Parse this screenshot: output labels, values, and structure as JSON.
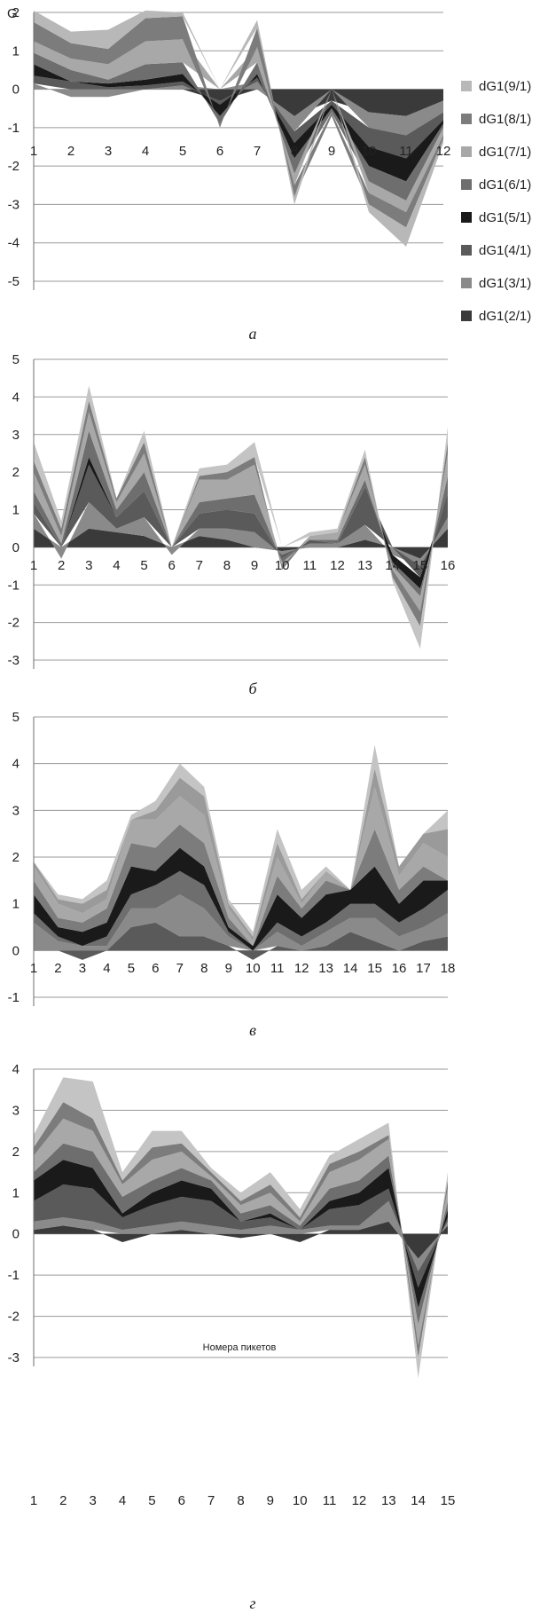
{
  "chart_data": [
    {
      "type": "area",
      "caption": "а",
      "y_axis_title": "G",
      "x_axis_title": "",
      "ylim": [
        -5,
        2
      ],
      "yticks": [
        2,
        1,
        0,
        -1,
        -2,
        -3,
        -4,
        -5
      ],
      "categories": [
        "1",
        "2",
        "3",
        "4",
        "5",
        "6",
        "7",
        "8",
        "9",
        "10",
        "11",
        "12"
      ],
      "legend_position": "right",
      "series_order_note": "",
      "series": [
        {
          "name": "dG1(2/1)",
          "color": "#3a3a3a",
          "values": [
            0.0,
            0.0,
            0.0,
            0.0,
            0.0,
            -0.3,
            0.0,
            -0.7,
            -0.3,
            -0.6,
            -0.7,
            -0.3
          ]
        },
        {
          "name": "dG1(3/1)",
          "color": "#8a8a8a",
          "values": [
            0.15,
            -0.2,
            -0.2,
            0.0,
            0.1,
            0.0,
            0.2,
            -0.4,
            0.0,
            -0.4,
            -0.5,
            -0.3
          ]
        },
        {
          "name": "dG1(4/1)",
          "color": "#5a5a5a",
          "values": [
            0.2,
            0.2,
            0.05,
            0.1,
            0.1,
            -0.1,
            0.1,
            -0.3,
            -0.1,
            -0.5,
            -0.6,
            -0.2
          ]
        },
        {
          "name": "dG1(5/1)",
          "color": "#1a1a1a",
          "values": [
            0.3,
            0.0,
            0.1,
            0.15,
            0.2,
            -0.3,
            0.1,
            -0.4,
            -0.1,
            -0.5,
            -0.6,
            -0.1
          ]
        },
        {
          "name": "dG1(6/1)",
          "color": "#6e6e6e",
          "values": [
            0.3,
            0.3,
            0.1,
            0.4,
            0.3,
            -0.2,
            0.3,
            -0.4,
            -0.1,
            -0.4,
            -0.5,
            -0.1
          ]
        },
        {
          "name": "dG1(7/1)",
          "color": "#a8a8a8",
          "values": [
            0.3,
            0.3,
            0.4,
            0.6,
            0.6,
            0.0,
            0.4,
            -0.3,
            0.0,
            -0.3,
            -0.3,
            -0.2
          ]
        },
        {
          "name": "dG1(8/1)",
          "color": "#7c7c7c",
          "values": [
            0.5,
            0.4,
            0.4,
            0.6,
            0.6,
            -0.1,
            0.5,
            -0.3,
            -0.1,
            -0.3,
            -0.4,
            -0.1
          ]
        },
        {
          "name": "dG1(9/1)",
          "color": "#b8b8b8",
          "values": [
            0.3,
            0.3,
            0.5,
            0.2,
            0.1,
            0.0,
            0.2,
            -0.2,
            0.0,
            -0.2,
            -0.5,
            -0.1
          ]
        }
      ]
    },
    {
      "type": "area",
      "caption": "б",
      "y_axis_title": "",
      "x_axis_title": "",
      "ylim": [
        -3,
        5
      ],
      "yticks": [
        5,
        4,
        3,
        2,
        1,
        0,
        -1,
        -2,
        -3
      ],
      "categories": [
        "1",
        "2",
        "3",
        "4",
        "5",
        "6",
        "7",
        "8",
        "9",
        "10",
        "11",
        "12",
        "13",
        "14",
        "15",
        "16"
      ],
      "legend_position": "none",
      "series": [
        {
          "name": "",
          "color": "#3a3a3a",
          "values": [
            0.5,
            0.0,
            0.5,
            0.4,
            0.3,
            0.0,
            0.3,
            0.2,
            0.0,
            -0.1,
            0.0,
            0.0,
            0.2,
            0.0,
            -0.3,
            0.5
          ]
        },
        {
          "name": "",
          "color": "#8a8a8a",
          "values": [
            0.4,
            -0.3,
            0.7,
            0.1,
            0.5,
            -0.2,
            0.2,
            0.3,
            0.4,
            -0.1,
            0.1,
            0.1,
            0.4,
            -0.2,
            -0.2,
            0.3
          ]
        },
        {
          "name": "",
          "color": "#5a5a5a",
          "values": [
            0.3,
            0.0,
            1.0,
            0.3,
            0.7,
            0.0,
            0.4,
            0.5,
            0.5,
            -0.1,
            0.1,
            0.0,
            1.0,
            0.0,
            -0.3,
            0.6
          ]
        },
        {
          "name": "",
          "color": "#1a1a1a",
          "values": [
            0.0,
            0.0,
            0.2,
            0.0,
            0.0,
            0.0,
            0.0,
            0.0,
            0.0,
            0.0,
            0.0,
            0.0,
            0.0,
            -0.2,
            -0.3,
            0.0
          ]
        },
        {
          "name": "",
          "color": "#6e6e6e",
          "values": [
            0.3,
            0.1,
            0.7,
            0.2,
            0.5,
            0.0,
            0.3,
            0.3,
            0.5,
            -0.1,
            0.0,
            0.1,
            0.2,
            -0.1,
            -0.2,
            0.5
          ]
        },
        {
          "name": "",
          "color": "#a8a8a8",
          "values": [
            0.5,
            0.2,
            0.5,
            0.2,
            0.5,
            0.0,
            0.6,
            0.5,
            0.8,
            -0.1,
            0.1,
            0.2,
            0.4,
            -0.1,
            -0.4,
            0.6
          ]
        },
        {
          "name": "",
          "color": "#7c7c7c",
          "values": [
            0.3,
            0.2,
            0.3,
            0.1,
            0.3,
            0.0,
            0.1,
            0.2,
            0.2,
            -0.1,
            0.0,
            0.0,
            0.2,
            -0.2,
            -0.4,
            0.3
          ]
        },
        {
          "name": "",
          "color": "#c4c4c4",
          "values": [
            0.5,
            0.2,
            0.4,
            0.0,
            0.3,
            0.0,
            0.2,
            0.2,
            0.4,
            0.0,
            0.1,
            0.1,
            0.2,
            -0.1,
            -0.6,
            0.4
          ]
        }
      ]
    },
    {
      "type": "area",
      "caption": "в",
      "y_axis_title": "",
      "x_axis_title": "",
      "ylim": [
        -1,
        5
      ],
      "yticks": [
        5,
        4,
        3,
        2,
        1,
        0,
        -1
      ],
      "categories": [
        "1",
        "2",
        "3",
        "4",
        "5",
        "6",
        "7",
        "8",
        "9",
        "10",
        "11",
        "12",
        "13",
        "14",
        "15",
        "16",
        "17",
        "18"
      ],
      "legend_position": "none",
      "series": [
        {
          "name": "",
          "color": "#5a5a5a",
          "values": [
            0.0,
            0.0,
            -0.2,
            0.0,
            0.5,
            0.6,
            0.3,
            0.3,
            0.1,
            -0.2,
            0.1,
            0.0,
            0.1,
            0.4,
            0.2,
            0.0,
            0.2,
            0.3
          ]
        },
        {
          "name": "",
          "color": "#8a8a8a",
          "values": [
            0.6,
            0.2,
            0.1,
            0.1,
            0.4,
            0.3,
            0.9,
            0.6,
            0.2,
            0.0,
            0.3,
            0.1,
            0.3,
            0.3,
            0.5,
            0.3,
            0.3,
            0.5
          ]
        },
        {
          "name": "",
          "color": "#6e6e6e",
          "values": [
            0.2,
            0.1,
            0.0,
            0.2,
            0.3,
            0.5,
            0.5,
            0.5,
            0.1,
            0.0,
            0.2,
            0.2,
            0.2,
            0.3,
            0.3,
            0.3,
            0.4,
            0.5
          ]
        },
        {
          "name": "",
          "color": "#1a1a1a",
          "values": [
            0.4,
            0.2,
            0.3,
            0.3,
            0.6,
            0.3,
            0.5,
            0.4,
            0.1,
            0.1,
            0.6,
            0.4,
            0.6,
            0.3,
            0.8,
            0.4,
            0.6,
            0.2
          ]
        },
        {
          "name": "",
          "color": "#7c7c7c",
          "values": [
            0.3,
            0.2,
            0.2,
            0.3,
            0.5,
            0.5,
            0.5,
            0.5,
            0.2,
            0.0,
            0.4,
            0.2,
            0.3,
            0.0,
            0.8,
            0.3,
            0.3,
            0.0
          ]
        },
        {
          "name": "",
          "color": "#a8a8a8",
          "values": [
            0.3,
            0.3,
            0.2,
            0.2,
            0.5,
            0.6,
            0.6,
            0.6,
            0.2,
            0.1,
            0.4,
            0.1,
            0.2,
            0.0,
            0.9,
            0.3,
            0.5,
            0.5
          ]
        },
        {
          "name": "",
          "color": "#9a9a9a",
          "values": [
            0.1,
            0.1,
            0.2,
            0.2,
            0.0,
            0.2,
            0.4,
            0.4,
            0.1,
            0.1,
            0.3,
            0.1,
            0.0,
            0.0,
            0.4,
            0.2,
            0.2,
            0.6
          ]
        },
        {
          "name": "",
          "color": "#c4c4c4",
          "values": [
            0.0,
            0.1,
            0.1,
            0.2,
            0.1,
            0.2,
            0.3,
            0.2,
            0.1,
            0.1,
            0.3,
            0.2,
            0.1,
            0.0,
            0.5,
            0.0,
            0.0,
            0.4
          ]
        }
      ]
    },
    {
      "type": "area",
      "caption": "г",
      "y_axis_title": "",
      "x_axis_title": "Номера пикетов",
      "ylim": [
        -3,
        4
      ],
      "yticks": [
        4,
        3,
        2,
        1,
        0,
        -1,
        -2,
        -3
      ],
      "categories": [
        "1",
        "2",
        "3",
        "4",
        "5",
        "6",
        "7",
        "8",
        "9",
        "10",
        "11",
        "12",
        "13",
        "14",
        "15"
      ],
      "legend_position": "none",
      "series": [
        {
          "name": "",
          "color": "#3a3a3a",
          "values": [
            0.1,
            0.2,
            0.1,
            -0.2,
            0.0,
            0.1,
            0.0,
            -0.1,
            0.0,
            -0.2,
            0.1,
            0.1,
            0.3,
            -0.6,
            0.2
          ]
        },
        {
          "name": "",
          "color": "#8a8a8a",
          "values": [
            0.2,
            0.2,
            0.2,
            0.1,
            0.2,
            0.2,
            0.2,
            0.1,
            0.2,
            0.1,
            0.1,
            0.1,
            0.5,
            -0.3,
            0.1
          ]
        },
        {
          "name": "",
          "color": "#5a5a5a",
          "values": [
            0.5,
            0.8,
            0.8,
            0.3,
            0.5,
            0.6,
            0.6,
            0.2,
            0.2,
            0.0,
            0.4,
            0.5,
            0.3,
            -0.4,
            0.1
          ]
        },
        {
          "name": "",
          "color": "#1a1a1a",
          "values": [
            0.5,
            0.6,
            0.5,
            0.1,
            0.3,
            0.4,
            0.3,
            0.0,
            0.1,
            0.0,
            0.2,
            0.3,
            0.5,
            -0.5,
            0.2
          ]
        },
        {
          "name": "",
          "color": "#6e6e6e",
          "values": [
            0.2,
            0.4,
            0.4,
            0.4,
            0.3,
            0.3,
            0.2,
            0.2,
            0.2,
            0.1,
            0.3,
            0.3,
            0.3,
            -0.4,
            0.2
          ]
        },
        {
          "name": "",
          "color": "#a8a8a8",
          "values": [
            0.4,
            0.6,
            0.5,
            0.3,
            0.5,
            0.4,
            0.1,
            0.2,
            0.3,
            0.1,
            0.4,
            0.5,
            0.4,
            -0.5,
            0.3
          ]
        },
        {
          "name": "",
          "color": "#7c7c7c",
          "values": [
            0.2,
            0.4,
            0.3,
            0.1,
            0.3,
            0.2,
            0.1,
            0.1,
            0.2,
            0.1,
            0.2,
            0.2,
            0.1,
            -0.3,
            0.2
          ]
        },
        {
          "name": "",
          "color": "#c4c4c4",
          "values": [
            0.3,
            0.6,
            0.9,
            0.2,
            0.4,
            0.3,
            0.1,
            0.2,
            0.3,
            0.2,
            0.2,
            0.3,
            0.3,
            -0.5,
            0.2
          ]
        }
      ]
    }
  ]
}
